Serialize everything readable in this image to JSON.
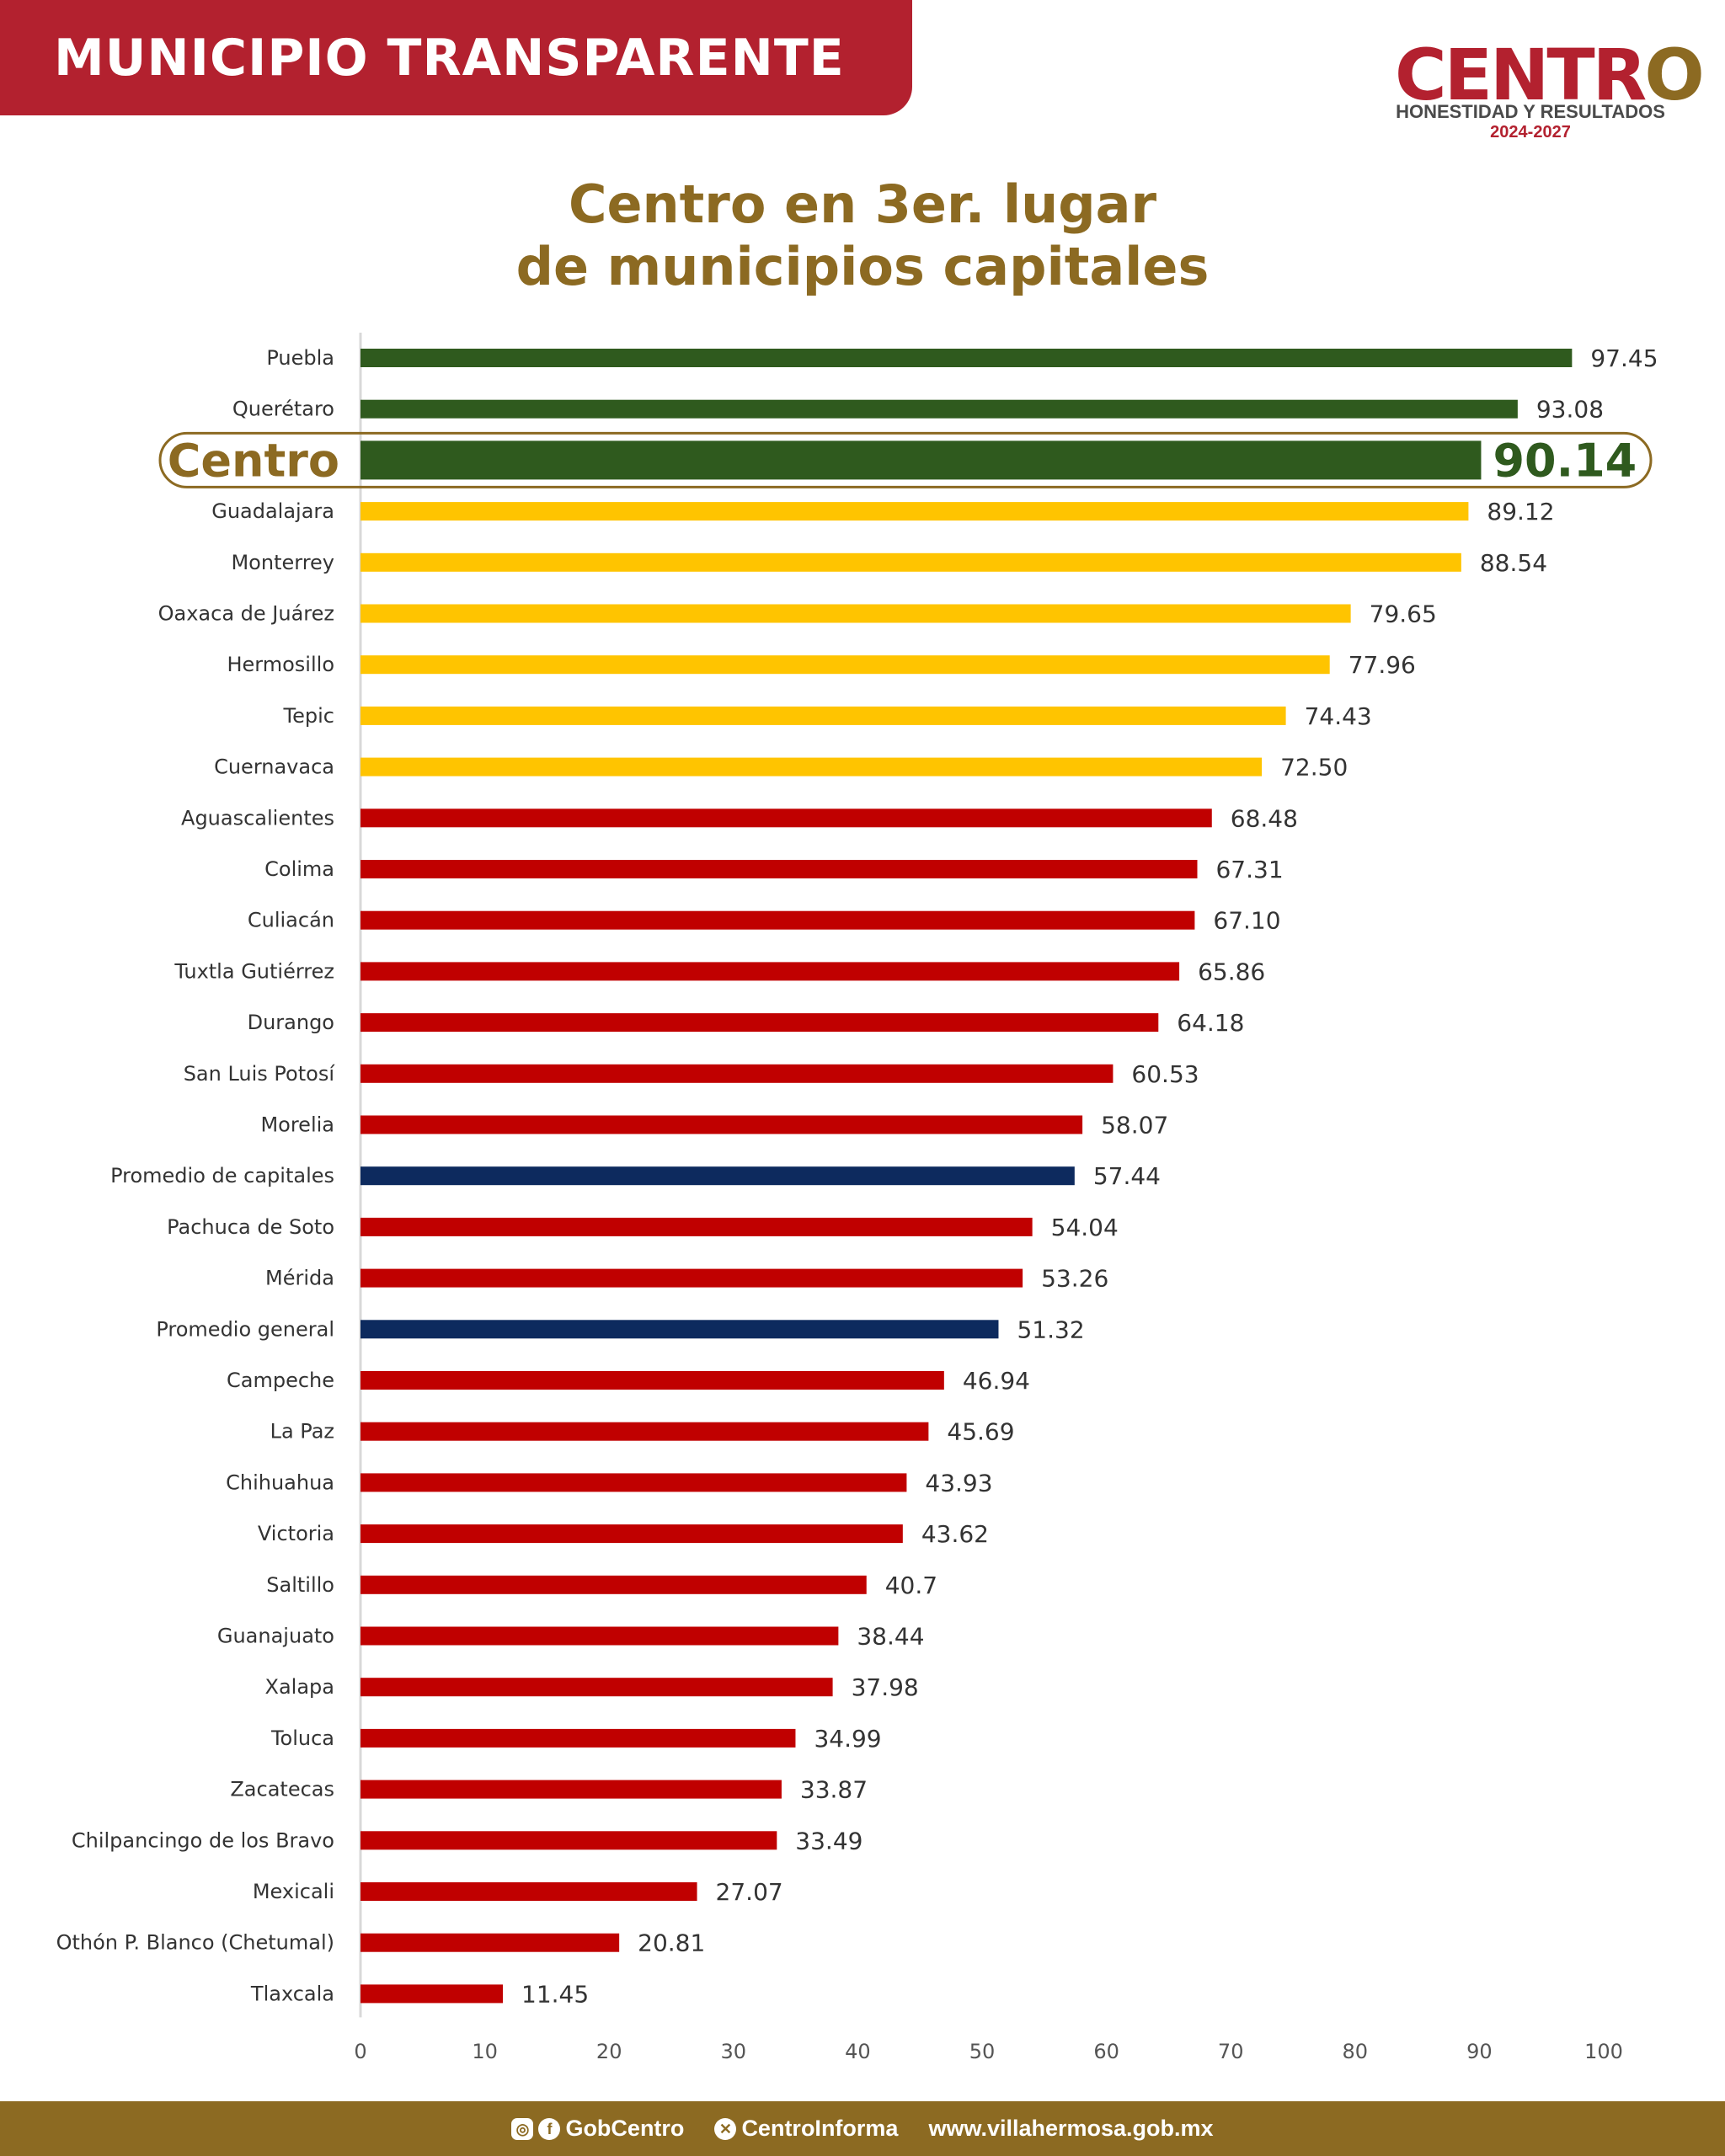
{
  "banner": {
    "text": "MUNICIPIO TRANSPARENTE"
  },
  "logo": {
    "word_part1": "CENTR",
    "word_part2": "O",
    "tagline": "HONESTIDAD Y RESULTADOS",
    "years": "2024-2027"
  },
  "title": {
    "line1": "Centro en 3er. lugar",
    "line2": "de municipios capitales"
  },
  "footer": {
    "social_icon_instagram": "instagram-icon",
    "social_icon_facebook": "facebook-icon",
    "handle1": "GobCentro",
    "social_icon_x": "x-icon",
    "handle2": "CentroInforma",
    "website": "www.villahermosa.gob.mx"
  },
  "chart_data": {
    "type": "bar",
    "orientation": "horizontal",
    "xlim": [
      0,
      100
    ],
    "xticks": [
      0,
      10,
      20,
      30,
      40,
      50,
      60,
      70,
      80,
      90,
      100
    ],
    "colors": {
      "top": "#2f5a1e",
      "middle": "#ffc400",
      "low": "#c00000",
      "average": "#0d2a5e"
    },
    "highlight": "Centro",
    "categories": [
      "Puebla",
      "Querétaro",
      "Centro",
      "Guadalajara",
      "Monterrey",
      "Oaxaca de Juárez",
      "Hermosillo",
      "Tepic",
      "Cuernavaca",
      "Aguascalientes",
      "Colima",
      "Culiacán",
      "Tuxtla Gutiérrez",
      "Durango",
      "San Luis Potosí",
      "Morelia",
      "Promedio de capitales",
      "Pachuca de Soto",
      "Mérida",
      "Promedio general",
      "Campeche",
      "La Paz",
      "Chihuahua",
      "Victoria",
      "Saltillo",
      "Guanajuato",
      "Xalapa",
      "Toluca",
      "Zacatecas",
      "Chilpancingo de los Bravo",
      "Mexicali",
      "Othón P. Blanco (Chetumal)",
      "Tlaxcala"
    ],
    "values": [
      97.45,
      93.08,
      90.14,
      89.12,
      88.54,
      79.65,
      77.96,
      74.43,
      72.5,
      68.48,
      67.31,
      67.1,
      65.86,
      64.18,
      60.53,
      58.07,
      57.44,
      54.04,
      53.26,
      51.32,
      46.94,
      45.69,
      43.93,
      43.62,
      40.7,
      38.44,
      37.98,
      34.99,
      33.87,
      33.49,
      27.07,
      20.81,
      11.45
    ],
    "value_labels": [
      "97.45",
      "93.08",
      "90.14",
      "89.12",
      "88.54",
      "79.65",
      "77.96",
      "74.43",
      "72.50",
      "68.48",
      "67.31",
      "67.10",
      "65.86",
      "64.18",
      "60.53",
      "58.07",
      "57.44",
      "54.04",
      "53.26",
      "51.32",
      "46.94",
      "45.69",
      "43.93",
      "43.62",
      "40.7",
      "38.44",
      "37.98",
      "34.99",
      "33.87",
      "33.49",
      "27.07",
      "20.81",
      "11.45"
    ],
    "color_groups": [
      "top",
      "top",
      "top",
      "middle",
      "middle",
      "middle",
      "middle",
      "middle",
      "middle",
      "low",
      "low",
      "low",
      "low",
      "low",
      "low",
      "low",
      "average",
      "low",
      "low",
      "average",
      "low",
      "low",
      "low",
      "low",
      "low",
      "low",
      "low",
      "low",
      "low",
      "low",
      "low",
      "low",
      "low"
    ]
  }
}
